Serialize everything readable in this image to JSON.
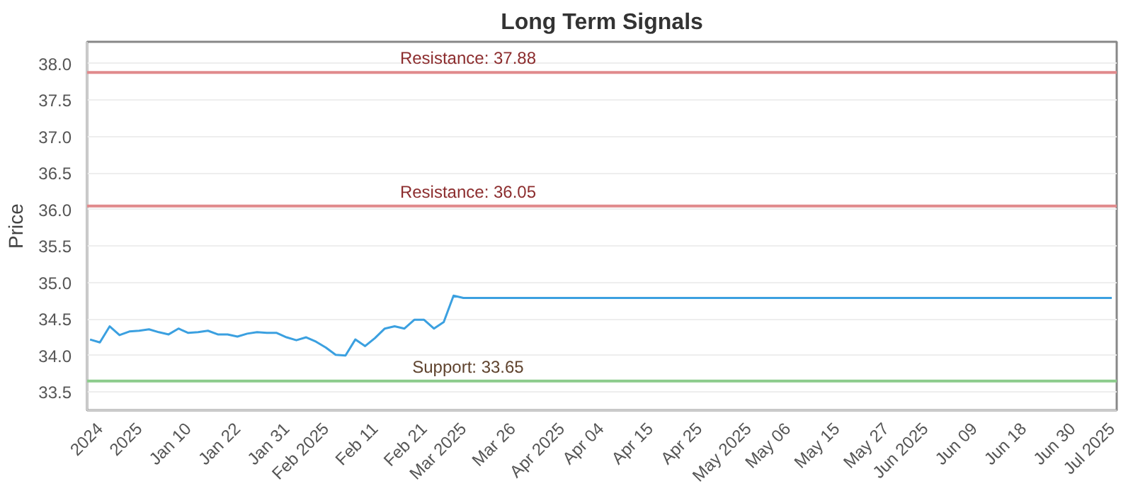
{
  "chart_data": {
    "type": "line",
    "title": "Long Term Signals",
    "ylabel": "Price",
    "categories": [
      null,
      "2024",
      null,
      null,
      null,
      "2025",
      null,
      null,
      null,
      null,
      "Jan 10",
      null,
      null,
      null,
      null,
      "Jan 22",
      null,
      null,
      null,
      null,
      "Jan 31",
      null,
      null,
      null,
      "Feb 2025",
      null,
      null,
      null,
      null,
      "Feb 11",
      null,
      null,
      null,
      null,
      "Feb 21",
      null,
      null,
      null,
      "Mar 2025",
      null,
      null,
      null,
      null,
      "Mar 26",
      null,
      null,
      null,
      null,
      "Apr 2025",
      null,
      null,
      null,
      "Apr 04",
      null,
      null,
      null,
      null,
      "Apr 15",
      null,
      null,
      null,
      null,
      "Apr 25",
      null,
      null,
      null,
      null,
      "May 2025",
      null,
      null,
      null,
      "May 06",
      null,
      null,
      null,
      null,
      "May 15",
      null,
      null,
      null,
      null,
      "May 27",
      null,
      null,
      null,
      "Jun 2025",
      null,
      null,
      null,
      null,
      "Jun 09",
      null,
      null,
      null,
      null,
      "Jun 18",
      null,
      null,
      null,
      null,
      "Jun 30",
      null,
      null,
      null,
      "Jul 2025"
    ],
    "series": [
      {
        "color": "#3ba0e0",
        "values": [
          34.22,
          34.18,
          34.4,
          34.28,
          34.33,
          34.34,
          34.36,
          34.32,
          34.29,
          34.37,
          34.31,
          34.32,
          34.34,
          34.29,
          34.29,
          34.26,
          34.3,
          34.32,
          34.31,
          34.31,
          34.25,
          34.21,
          34.25,
          34.19,
          34.11,
          34.01,
          34.0,
          34.22,
          34.13,
          34.24,
          34.37,
          34.4,
          34.37,
          34.49,
          34.49,
          34.37,
          34.46,
          34.82,
          34.79,
          34.79,
          34.79,
          34.79,
          34.79,
          34.79,
          34.79,
          34.79,
          34.79,
          34.79,
          34.79,
          34.79,
          34.79,
          34.79,
          34.79,
          34.79,
          34.79,
          34.79,
          34.79,
          34.79,
          34.79,
          34.79,
          34.79,
          34.79,
          34.79,
          34.79,
          34.79,
          34.79,
          34.79,
          34.79,
          34.79,
          34.79,
          34.79,
          34.79,
          34.79,
          34.79,
          34.79,
          34.79,
          34.79,
          34.79,
          34.79,
          34.79,
          34.79,
          34.79,
          34.79,
          34.79,
          34.79,
          34.79,
          34.79,
          34.79,
          34.79,
          34.79,
          34.79,
          34.79,
          34.79,
          34.79,
          34.79,
          34.79,
          34.79,
          34.79,
          34.79,
          34.79,
          34.79,
          34.79,
          34.79,
          34.79,
          34.79
        ]
      }
    ],
    "ylim": [
      33.25,
      38.3
    ],
    "yticks": [
      33.5,
      {
        "value": 34,
        "label": "34.0"
      },
      34.5,
      {
        "value": 35,
        "label": "35.0"
      },
      35.5,
      {
        "value": 36,
        "label": "36.0"
      },
      36.5,
      {
        "value": 37,
        "label": "37.0"
      },
      37.5,
      {
        "value": 38,
        "label": "38.0"
      }
    ],
    "grid": "y",
    "ref_lines": [
      {
        "axis": "y",
        "value": 37.88,
        "label": "Resistance: 37.88",
        "color": "#e08a8c"
      },
      {
        "axis": "y",
        "value": 36.05,
        "label": "Resistance: 36.05",
        "color": "#e08a8c"
      },
      {
        "axis": "y",
        "value": 33.65,
        "label": "Support: 33.65",
        "color": "#8ccc8c"
      }
    ]
  }
}
